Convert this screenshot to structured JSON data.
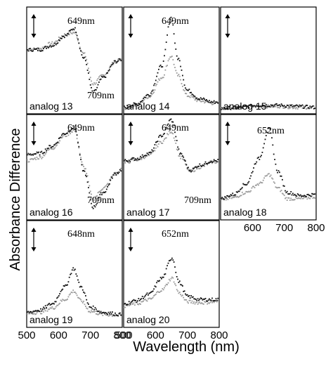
{
  "chart_data": {
    "type": "scatter",
    "ylabel": "Absorbance Difference",
    "xlabel": "Wavelength (nm)",
    "xlim": [
      500,
      800
    ],
    "x_ticks": [
      "500",
      "600",
      "700",
      "800"
    ],
    "series_colors": [
      "#111111",
      "#9a9a9a"
    ],
    "panels": [
      {
        "label": "analog 13",
        "annotations": [
          "649nm",
          "709nm"
        ],
        "dark": [
          [
            500,
            0.6
          ],
          [
            540,
            0.6
          ],
          [
            580,
            0.64
          ],
          [
            620,
            0.73
          ],
          [
            649,
            0.8
          ],
          [
            680,
            0.52
          ],
          [
            709,
            0.2
          ],
          [
            740,
            0.34
          ],
          [
            780,
            0.49
          ],
          [
            800,
            0.51
          ]
        ],
        "light": [
          [
            500,
            0.6
          ],
          [
            540,
            0.61
          ],
          [
            580,
            0.66
          ],
          [
            620,
            0.74
          ],
          [
            649,
            0.76
          ],
          [
            680,
            0.56
          ],
          [
            709,
            0.28
          ],
          [
            740,
            0.36
          ],
          [
            780,
            0.49
          ],
          [
            800,
            0.51
          ]
        ]
      },
      {
        "label": "analog 14",
        "annotations": [
          "649nm"
        ],
        "dark": [
          [
            500,
            0.06
          ],
          [
            540,
            0.09
          ],
          [
            580,
            0.18
          ],
          [
            620,
            0.45
          ],
          [
            649,
            0.9
          ],
          [
            670,
            0.52
          ],
          [
            700,
            0.22
          ],
          [
            740,
            0.14
          ],
          [
            780,
            0.11
          ],
          [
            800,
            0.11
          ]
        ],
        "light": [
          [
            500,
            0.05
          ],
          [
            540,
            0.08
          ],
          [
            580,
            0.16
          ],
          [
            620,
            0.34
          ],
          [
            649,
            0.54
          ],
          [
            670,
            0.36
          ],
          [
            700,
            0.17
          ],
          [
            740,
            0.12
          ],
          [
            780,
            0.1
          ],
          [
            800,
            0.1
          ]
        ]
      },
      {
        "label": "analog 15",
        "annotations": [],
        "dark": [
          [
            500,
            0.05
          ],
          [
            560,
            0.06
          ],
          [
            620,
            0.08
          ],
          [
            680,
            0.08
          ],
          [
            740,
            0.07
          ],
          [
            800,
            0.06
          ]
        ],
        "light": [
          [
            500,
            0.05
          ],
          [
            560,
            0.06
          ],
          [
            620,
            0.07
          ],
          [
            680,
            0.07
          ],
          [
            740,
            0.06
          ],
          [
            800,
            0.06
          ]
        ]
      },
      {
        "label": "analog 16",
        "annotations": [
          "649nm",
          "709nm"
        ],
        "dark": [
          [
            500,
            0.62
          ],
          [
            540,
            0.63
          ],
          [
            580,
            0.7
          ],
          [
            620,
            0.82
          ],
          [
            649,
            0.88
          ],
          [
            680,
            0.46
          ],
          [
            709,
            0.12
          ],
          [
            740,
            0.26
          ],
          [
            780,
            0.44
          ],
          [
            800,
            0.48
          ]
        ],
        "light": [
          [
            500,
            0.56
          ],
          [
            540,
            0.59
          ],
          [
            580,
            0.68
          ],
          [
            620,
            0.8
          ],
          [
            649,
            0.85
          ],
          [
            680,
            0.5
          ],
          [
            709,
            0.2
          ],
          [
            740,
            0.3
          ],
          [
            780,
            0.44
          ],
          [
            800,
            0.48
          ]
        ]
      },
      {
        "label": "analog 17",
        "annotations": [
          "649nm",
          "709nm"
        ],
        "dark": [
          [
            500,
            0.56
          ],
          [
            540,
            0.58
          ],
          [
            580,
            0.63
          ],
          [
            620,
            0.8
          ],
          [
            649,
            0.95
          ],
          [
            680,
            0.62
          ],
          [
            709,
            0.47
          ],
          [
            740,
            0.52
          ],
          [
            780,
            0.56
          ],
          [
            800,
            0.56
          ]
        ],
        "light": [
          [
            500,
            0.54
          ],
          [
            540,
            0.57
          ],
          [
            580,
            0.61
          ],
          [
            620,
            0.74
          ],
          [
            649,
            0.84
          ],
          [
            680,
            0.59
          ],
          [
            709,
            0.46
          ],
          [
            740,
            0.5
          ],
          [
            780,
            0.55
          ],
          [
            800,
            0.55
          ]
        ]
      },
      {
        "label": "analog 18",
        "annotations": [
          "652nm"
        ],
        "dark": [
          [
            500,
            0.2
          ],
          [
            540,
            0.24
          ],
          [
            580,
            0.34
          ],
          [
            620,
            0.58
          ],
          [
            652,
            0.86
          ],
          [
            680,
            0.46
          ],
          [
            710,
            0.26
          ],
          [
            750,
            0.23
          ],
          [
            800,
            0.24
          ]
        ],
        "light": [
          [
            500,
            0.19
          ],
          [
            540,
            0.21
          ],
          [
            580,
            0.26
          ],
          [
            620,
            0.34
          ],
          [
            652,
            0.43
          ],
          [
            680,
            0.3
          ],
          [
            710,
            0.2
          ],
          [
            750,
            0.2
          ],
          [
            800,
            0.22
          ]
        ]
      },
      {
        "label": "analog 19",
        "annotations": [
          "648nm"
        ],
        "dark": [
          [
            500,
            0.14
          ],
          [
            540,
            0.16
          ],
          [
            580,
            0.22
          ],
          [
            620,
            0.38
          ],
          [
            648,
            0.55
          ],
          [
            670,
            0.38
          ],
          [
            700,
            0.19
          ],
          [
            740,
            0.14
          ],
          [
            800,
            0.12
          ]
        ],
        "light": [
          [
            500,
            0.13
          ],
          [
            540,
            0.14
          ],
          [
            580,
            0.18
          ],
          [
            620,
            0.26
          ],
          [
            648,
            0.34
          ],
          [
            670,
            0.25
          ],
          [
            700,
            0.15
          ],
          [
            740,
            0.12
          ],
          [
            800,
            0.11
          ]
        ]
      },
      {
        "label": "analog 20",
        "annotations": [
          "652nm"
        ],
        "dark": [
          [
            500,
            0.22
          ],
          [
            540,
            0.25
          ],
          [
            580,
            0.31
          ],
          [
            620,
            0.46
          ],
          [
            652,
            0.65
          ],
          [
            675,
            0.42
          ],
          [
            700,
            0.29
          ],
          [
            740,
            0.26
          ],
          [
            800,
            0.26
          ]
        ],
        "light": [
          [
            500,
            0.2
          ],
          [
            540,
            0.22
          ],
          [
            580,
            0.26
          ],
          [
            620,
            0.35
          ],
          [
            652,
            0.46
          ],
          [
            675,
            0.32
          ],
          [
            700,
            0.24
          ],
          [
            740,
            0.23
          ],
          [
            800,
            0.24
          ]
        ]
      }
    ]
  }
}
